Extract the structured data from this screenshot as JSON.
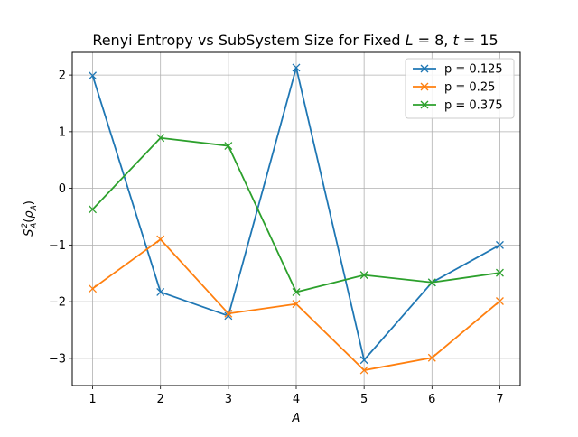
{
  "chart_data": {
    "type": "line",
    "title": "Renyi Entropy vs SubSystem Size for Fixed L = 8, t = 15",
    "title_parts": {
      "prefix": "Renyi Entropy vs SubSystem Size for Fixed ",
      "L_symbol": "L",
      "L_value": " = 8, ",
      "t_symbol": "t",
      "t_value": " = 15"
    },
    "xlabel": "A",
    "ylabel": "S_A^2(ρ_A)",
    "ylabel_parts": {
      "base": "S",
      "sup": "2",
      "sub": "A",
      "paren_open": "(",
      "rho": "ρ",
      "rho_sub": "A",
      "paren_close": ")"
    },
    "x": [
      1,
      2,
      3,
      4,
      5,
      6,
      7
    ],
    "xlim": [
      0.7,
      7.3
    ],
    "ylim": [
      -3.48,
      2.4
    ],
    "xticks": [
      1,
      2,
      3,
      4,
      5,
      6,
      7
    ],
    "yticks": [
      -3,
      -2,
      -1,
      0,
      1,
      2
    ],
    "ytick_labels": [
      "−3",
      "−2",
      "−1",
      "0",
      "1",
      "2"
    ],
    "grid": true,
    "legend_position": "top-right",
    "marker": "x",
    "series": [
      {
        "name": "p = 0.125",
        "color": "#1f77b4",
        "values": [
          1.99,
          -1.83,
          -2.25,
          2.13,
          -3.03,
          -1.66,
          -1.0
        ]
      },
      {
        "name": "p = 0.25",
        "color": "#ff7f0e",
        "values": [
          -1.77,
          -0.9,
          -2.21,
          -2.04,
          -3.21,
          -2.99,
          -1.99
        ]
      },
      {
        "name": "p = 0.375",
        "color": "#2ca02c",
        "values": [
          -0.37,
          0.89,
          0.75,
          -1.83,
          -1.53,
          -1.66,
          -1.49
        ]
      }
    ]
  }
}
